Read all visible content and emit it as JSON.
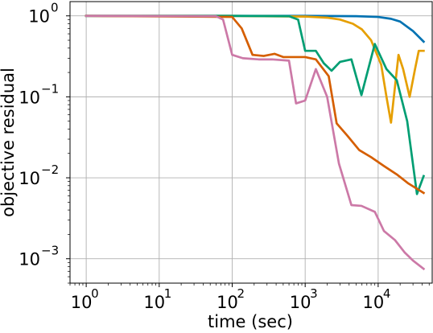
{
  "chart_data": {
    "type": "line",
    "title": "",
    "xlabel": "time (sec)",
    "ylabel": "objective residual",
    "xscale": "log",
    "yscale": "log",
    "xlim": [
      0.6,
      55000
    ],
    "ylim": [
      0.0005,
      1.5
    ],
    "grid": true,
    "legend": "none",
    "x_ticks": [
      {
        "value": 1,
        "base": "10",
        "exp": "0"
      },
      {
        "value": 10,
        "base": "10",
        "exp": "1"
      },
      {
        "value": 100,
        "base": "10",
        "exp": "2"
      },
      {
        "value": 1000,
        "base": "10",
        "exp": "3"
      },
      {
        "value": 10000,
        "base": "10",
        "exp": "4"
      }
    ],
    "y_ticks": [
      {
        "value": 1,
        "base": "10",
        "exp": "0"
      },
      {
        "value": 0.1,
        "base": "10",
        "exp": "−1"
      },
      {
        "value": 0.01,
        "base": "10",
        "exp": "−2"
      },
      {
        "value": 0.001,
        "base": "10",
        "exp": "−3"
      }
    ],
    "series": [
      {
        "color": "#0072B2",
        "points": [
          [
            1,
            1.0
          ],
          [
            100,
            1.0
          ],
          [
            1000,
            1.0
          ],
          [
            5000,
            0.99
          ],
          [
            10000,
            0.97
          ],
          [
            15000,
            0.92
          ],
          [
            20000,
            0.85
          ],
          [
            30000,
            0.65
          ],
          [
            42000,
            0.48
          ]
        ]
      },
      {
        "color": "#E69F00",
        "points": [
          [
            1,
            1.0
          ],
          [
            100,
            1.0
          ],
          [
            1000,
            0.98
          ],
          [
            2000,
            0.95
          ],
          [
            3000,
            0.9
          ],
          [
            4500,
            0.8
          ],
          [
            6000,
            0.68
          ],
          [
            8000,
            0.5
          ],
          [
            11000,
            0.25
          ],
          [
            13000,
            0.1
          ],
          [
            15000,
            0.048
          ],
          [
            19000,
            0.33
          ],
          [
            22000,
            0.22
          ],
          [
            27000,
            0.1
          ],
          [
            32000,
            0.22
          ],
          [
            36000,
            0.37
          ],
          [
            42000,
            0.37
          ]
        ]
      },
      {
        "color": "#009E73",
        "points": [
          [
            1,
            1.0
          ],
          [
            100,
            1.0
          ],
          [
            600,
            0.99
          ],
          [
            800,
            0.9
          ],
          [
            1000,
            0.37
          ],
          [
            1400,
            0.37
          ],
          [
            1800,
            0.26
          ],
          [
            2300,
            0.21
          ],
          [
            3000,
            0.27
          ],
          [
            4300,
            0.29
          ],
          [
            5900,
            0.105
          ],
          [
            9000,
            0.45
          ],
          [
            13000,
            0.22
          ],
          [
            18000,
            0.16
          ],
          [
            25000,
            0.05
          ],
          [
            34000,
            0.0063
          ],
          [
            42000,
            0.0105
          ]
        ]
      },
      {
        "color": "#D55E00",
        "points": [
          [
            1,
            1.0
          ],
          [
            100,
            0.97
          ],
          [
            135,
            0.7
          ],
          [
            190,
            0.33
          ],
          [
            270,
            0.32
          ],
          [
            380,
            0.34
          ],
          [
            500,
            0.31
          ],
          [
            700,
            0.31
          ],
          [
            1000,
            0.31
          ],
          [
            1400,
            0.29
          ],
          [
            2100,
            0.18
          ],
          [
            2700,
            0.047
          ],
          [
            3800,
            0.033
          ],
          [
            5500,
            0.022
          ],
          [
            8000,
            0.018
          ],
          [
            12000,
            0.014
          ],
          [
            18000,
            0.011
          ],
          [
            26000,
            0.0085
          ],
          [
            42000,
            0.0065
          ]
        ]
      },
      {
        "color": "#CC79A7",
        "points": [
          [
            1,
            1.0
          ],
          [
            60,
            0.99
          ],
          [
            75,
            0.9
          ],
          [
            100,
            0.33
          ],
          [
            140,
            0.3
          ],
          [
            230,
            0.29
          ],
          [
            350,
            0.29
          ],
          [
            600,
            0.28
          ],
          [
            750,
            0.083
          ],
          [
            1000,
            0.09
          ],
          [
            1400,
            0.22
          ],
          [
            2000,
            0.1
          ],
          [
            2900,
            0.015
          ],
          [
            4300,
            0.0046
          ],
          [
            5900,
            0.0045
          ],
          [
            9000,
            0.0038
          ],
          [
            12000,
            0.0022
          ],
          [
            17000,
            0.0017
          ],
          [
            23000,
            0.0012
          ],
          [
            30000,
            0.00095
          ],
          [
            42000,
            0.00075
          ]
        ]
      }
    ]
  }
}
